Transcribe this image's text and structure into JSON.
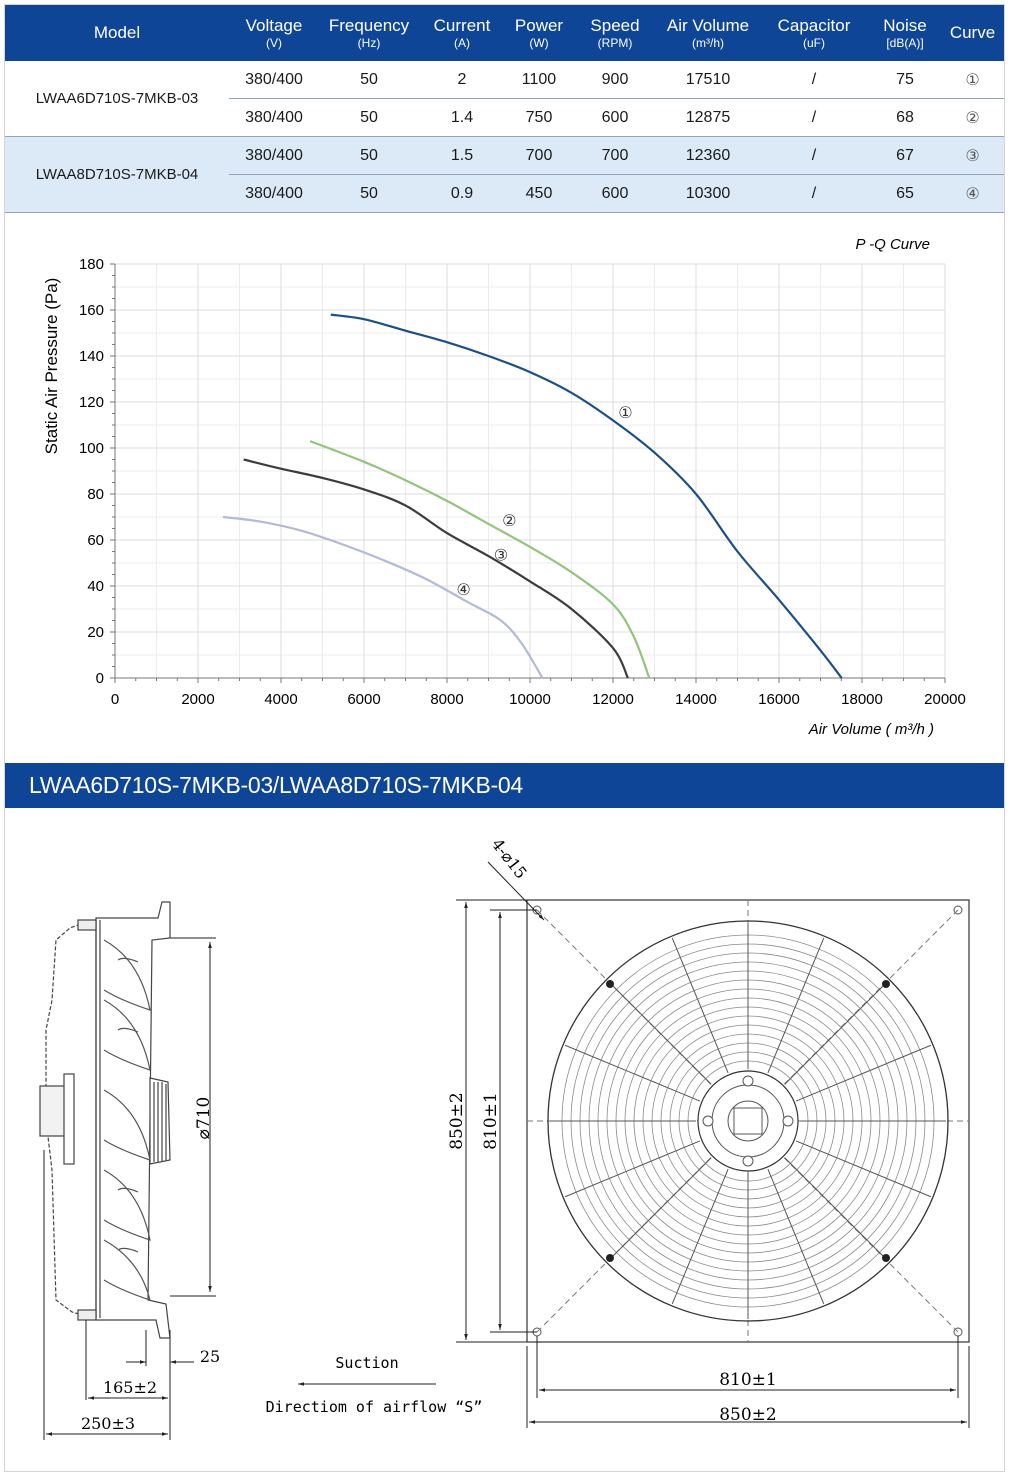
{
  "table": {
    "headers": [
      {
        "top": "Model",
        "sub": ""
      },
      {
        "top": "Voltage",
        "sub": "(V)"
      },
      {
        "top": "Frequency",
        "sub": "(Hz)"
      },
      {
        "top": "Current",
        "sub": "(A)"
      },
      {
        "top": "Power",
        "sub": "(W)"
      },
      {
        "top": "Speed",
        "sub": "(RPM)"
      },
      {
        "top": "Air Volume",
        "sub": "(m³/h)"
      },
      {
        "top": "Capacitor",
        "sub": "(uF)"
      },
      {
        "top": "Noise",
        "sub": "[dB(A)]"
      },
      {
        "top": "Curve",
        "sub": ""
      }
    ],
    "groups": [
      {
        "model": "LWAA6D710S-7MKB-03",
        "rows": [
          {
            "voltage": "380/400",
            "frequency": "50",
            "current": "2",
            "power": "1100",
            "speed": "900",
            "air_volume": "17510",
            "capacitor": "/",
            "noise": "75",
            "curve": "①"
          },
          {
            "voltage": "380/400",
            "frequency": "50",
            "current": "1.4",
            "power": "750",
            "speed": "600",
            "air_volume": "12875",
            "capacitor": "/",
            "noise": "68",
            "curve": "②"
          }
        ]
      },
      {
        "model": "LWAA8D710S-7MKB-04",
        "rows": [
          {
            "voltage": "380/400",
            "frequency": "50",
            "current": "1.5",
            "power": "700",
            "speed": "700",
            "air_volume": "12360",
            "capacitor": "/",
            "noise": "67",
            "curve": "③"
          },
          {
            "voltage": "380/400",
            "frequency": "50",
            "current": "0.9",
            "power": "450",
            "speed": "600",
            "air_volume": "10300",
            "capacitor": "/",
            "noise": "65",
            "curve": "④"
          }
        ]
      }
    ]
  },
  "chart_data": {
    "type": "line",
    "title": "P -Q Curve",
    "xlabel": "Air Volume ( m³/h )",
    "ylabel": "Static Air Pressure  (Pa)",
    "xlim": [
      0,
      20000
    ],
    "ylim": [
      0,
      180
    ],
    "x_ticks": [
      0,
      2000,
      4000,
      6000,
      8000,
      10000,
      12000,
      14000,
      16000,
      18000,
      20000
    ],
    "y_ticks": [
      0,
      20,
      40,
      60,
      80,
      100,
      120,
      140,
      160,
      180
    ],
    "grid": true,
    "series": [
      {
        "label": "①",
        "color": "#1d4f86",
        "label_at": [
          12300,
          113
        ],
        "points": [
          [
            5200,
            158
          ],
          [
            6000,
            156
          ],
          [
            7000,
            151
          ],
          [
            8000,
            146
          ],
          [
            9000,
            140
          ],
          [
            10000,
            133
          ],
          [
            11000,
            124
          ],
          [
            12000,
            112
          ],
          [
            13000,
            98
          ],
          [
            14000,
            80
          ],
          [
            15000,
            55
          ],
          [
            16000,
            34
          ],
          [
            17000,
            12
          ],
          [
            17510,
            0
          ]
        ]
      },
      {
        "label": "②",
        "color": "#93c47d",
        "label_at": [
          9500,
          66
        ],
        "points": [
          [
            4700,
            103
          ],
          [
            6000,
            94
          ],
          [
            7000,
            86
          ],
          [
            8000,
            77
          ],
          [
            9000,
            67
          ],
          [
            10000,
            57
          ],
          [
            11000,
            46
          ],
          [
            12000,
            32
          ],
          [
            12500,
            18
          ],
          [
            12875,
            0
          ]
        ]
      },
      {
        "label": "③",
        "color": "#3c3c3c",
        "label_at": [
          9300,
          51
        ],
        "points": [
          [
            3100,
            95
          ],
          [
            4000,
            91
          ],
          [
            5000,
            87
          ],
          [
            6000,
            82
          ],
          [
            7000,
            75
          ],
          [
            8000,
            63
          ],
          [
            9000,
            53
          ],
          [
            10000,
            42
          ],
          [
            11000,
            30
          ],
          [
            12000,
            13
          ],
          [
            12360,
            0
          ]
        ]
      },
      {
        "label": "④",
        "color": "#b3b9d8",
        "label_at": [
          8400,
          36
        ],
        "points": [
          [
            2600,
            70
          ],
          [
            3500,
            68
          ],
          [
            4500,
            64
          ],
          [
            5500,
            58
          ],
          [
            6500,
            51
          ],
          [
            7500,
            43
          ],
          [
            8500,
            33
          ],
          [
            9300,
            25
          ],
          [
            9800,
            15
          ],
          [
            10300,
            0
          ]
        ]
      }
    ]
  },
  "drawing": {
    "band_title": "LWAA6D710S-7MKB-03/LWAA8D710S-7MKB-04",
    "dim_diameter": "⌀710",
    "dim_25": "25",
    "dim_165": "165±2",
    "dim_250": "250±3",
    "suction": "Suction",
    "airflow": "Directiom of airflow “S”",
    "holes": "4-⌀15",
    "dim_850_v": "850±2",
    "dim_810_v": "810±1",
    "dim_810_h": "810±1",
    "dim_850_h": "850±2"
  }
}
